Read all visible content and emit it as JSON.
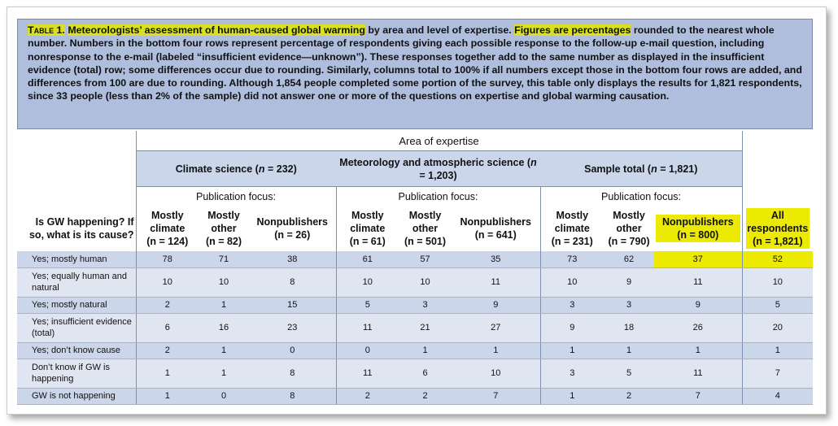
{
  "caption": {
    "label": "Table 1.",
    "title_highlighted": "Meteorologists’ assessment of human-caused global warming",
    "title_rest": " by area and level of expertise. ",
    "note_highlighted": "Figures are percentages",
    "body": " rounded to the nearest whole number. Numbers in the bottom four rows represent percentage of respondents giving each possible response to the follow-up e-mail question, including nonresponse to the e-mail (labeled “insufficient evidence—unknown”). These responses together add to the same number as displayed in the insufficient evidence (total) row; some differences occur due to rounding. Similarly, columns total to 100% if all numbers except those in the bottom four rows are added, and differences from 100 are due to rounding. Although 1,854 people completed some portion of the survey, this table only displays the results for 1,821 respondents, since 33 people (less than 2% of the sample) did not answer one or more of the questions on expertise and global warming causation."
  },
  "header": {
    "area_title": "Area of expertise",
    "question": "Is GW happening? If so, what is its cause?",
    "groups": [
      {
        "name": "Climate science (",
        "n_label": "n",
        "n_value": " = 232)"
      },
      {
        "name": "Meteorology and atmospheric science (",
        "n_label": "n",
        "n_value": " = 1,203)"
      },
      {
        "name": "Sample total (",
        "n_label": "n",
        "n_value": " = 1,821)"
      }
    ],
    "publication_focus": "Publication focus:",
    "columns": [
      {
        "name": "Mostly climate",
        "n": "(n = 124)"
      },
      {
        "name": "Mostly other",
        "n": "(n = 82)"
      },
      {
        "name": "Nonpublishers",
        "n": "(n = 26)"
      },
      {
        "name": "Mostly climate",
        "n": "(n = 61)"
      },
      {
        "name": "Mostly other",
        "n": "(n = 501)"
      },
      {
        "name": "Nonpublishers",
        "n": "(n = 641)"
      },
      {
        "name": "Mostly climate",
        "n": "(n = 231)"
      },
      {
        "name": "Mostly other",
        "n": "(n = 790)"
      },
      {
        "name": "Nonpublishers",
        "n": "(n = 800)"
      }
    ],
    "all": {
      "name": "All respondents",
      "n": "(n = 1,821)"
    }
  },
  "rows": [
    {
      "label": "Yes; mostly human",
      "values": [
        "78",
        "71",
        "38",
        "61",
        "57",
        "35",
        "73",
        "62",
        "37",
        "52"
      ]
    },
    {
      "label": "Yes; equally human and natural",
      "values": [
        "10",
        "10",
        "8",
        "10",
        "10",
        "11",
        "10",
        "9",
        "11",
        "10"
      ]
    },
    {
      "label": "Yes; mostly natural",
      "values": [
        "2",
        "1",
        "15",
        "5",
        "3",
        "9",
        "3",
        "3",
        "9",
        "5"
      ]
    },
    {
      "label": "Yes; insufficient evidence (total)",
      "values": [
        "6",
        "16",
        "23",
        "11",
        "21",
        "27",
        "9",
        "18",
        "26",
        "20"
      ]
    },
    {
      "label": "Yes; don’t know cause",
      "values": [
        "2",
        "1",
        "0",
        "0",
        "1",
        "1",
        "1",
        "1",
        "1",
        "1"
      ]
    },
    {
      "label": "Don’t know if GW is happening",
      "values": [
        "1",
        "1",
        "8",
        "11",
        "6",
        "10",
        "3",
        "5",
        "11",
        "7"
      ]
    },
    {
      "label": "GW is not happening",
      "values": [
        "1",
        "0",
        "8",
        "2",
        "2",
        "7",
        "1",
        "2",
        "7",
        "4"
      ]
    }
  ],
  "colors": {
    "highlight": "#ebea00",
    "caption_bg": "#aebedc",
    "band": "#ccd6eb"
  }
}
